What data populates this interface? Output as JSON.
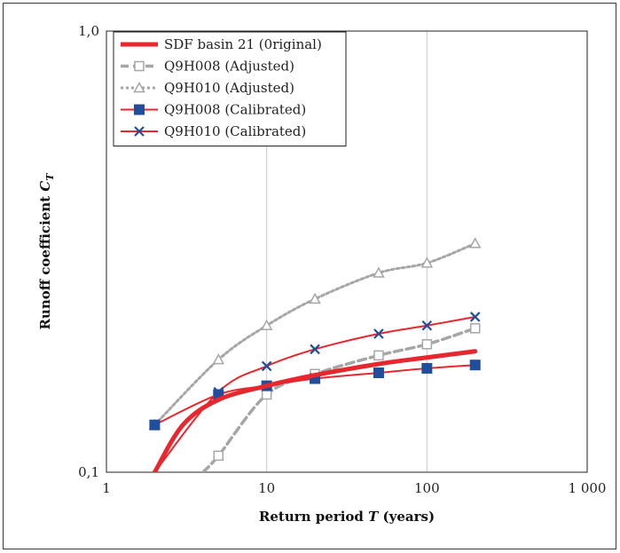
{
  "chart_data": {
    "type": "line",
    "title": "",
    "xlabel_main": "Return period ",
    "xlabel_var": "T",
    "xlabel_unit": " (years)",
    "ylabel_main": "Runoff coefficient ",
    "ylabel_var": "C",
    "ylabel_sub": "T",
    "x_scale": "log",
    "y_scale": "log",
    "xlim": [
      1,
      1000
    ],
    "ylim": [
      0.1,
      1.0
    ],
    "x_ticks": [
      1,
      10,
      100,
      1000
    ],
    "x_tick_labels": [
      "1",
      "10",
      "100",
      "1 000"
    ],
    "y_ticks": [
      0.1,
      1.0
    ],
    "y_tick_labels": [
      "0,1",
      "1,0"
    ],
    "grid": "vertical",
    "legend_position": "top-left",
    "series": [
      {
        "name": "SDF basin 21 (0riginal)",
        "color": "#e8262d",
        "style": "thick-solid",
        "marker": "none",
        "x": [
          2,
          3,
          5,
          10,
          20,
          50,
          100,
          200
        ],
        "y": [
          0.1,
          0.128,
          0.146,
          0.157,
          0.166,
          0.176,
          0.182,
          0.188
        ]
      },
      {
        "name": "Q9H008 (Adjusted)",
        "color": "#a6a6a6",
        "style": "dashed",
        "marker": "open-square",
        "x": [
          4,
          5,
          10,
          20,
          50,
          100,
          200
        ],
        "y": [
          0.1,
          0.109,
          0.15,
          0.167,
          0.184,
          0.195,
          0.212
        ]
      },
      {
        "name": "Q9H010 (Adjusted)",
        "color": "#a6a6a6",
        "style": "dotted",
        "marker": "triangle",
        "x": [
          2,
          5,
          10,
          20,
          50,
          100,
          200
        ],
        "y": [
          0.128,
          0.18,
          0.215,
          0.247,
          0.283,
          0.298,
          0.33
        ]
      },
      {
        "name": "Q9H008 (Calibrated)",
        "color": "#e8262d",
        "style": "solid",
        "marker": "filled-square",
        "marker_color": "#1f4e9c",
        "x": [
          2,
          5,
          10,
          20,
          50,
          100,
          200
        ],
        "y": [
          0.128,
          0.15,
          0.157,
          0.163,
          0.168,
          0.172,
          0.175
        ]
      },
      {
        "name": "Q9H010 (Calibrated)",
        "color": "#e8262d",
        "style": "solid",
        "marker": "x",
        "marker_color": "#1f4e9c",
        "x": [
          2,
          5,
          10,
          20,
          50,
          100,
          200
        ],
        "y": [
          0.1,
          0.152,
          0.174,
          0.19,
          0.206,
          0.215,
          0.225
        ]
      }
    ]
  }
}
